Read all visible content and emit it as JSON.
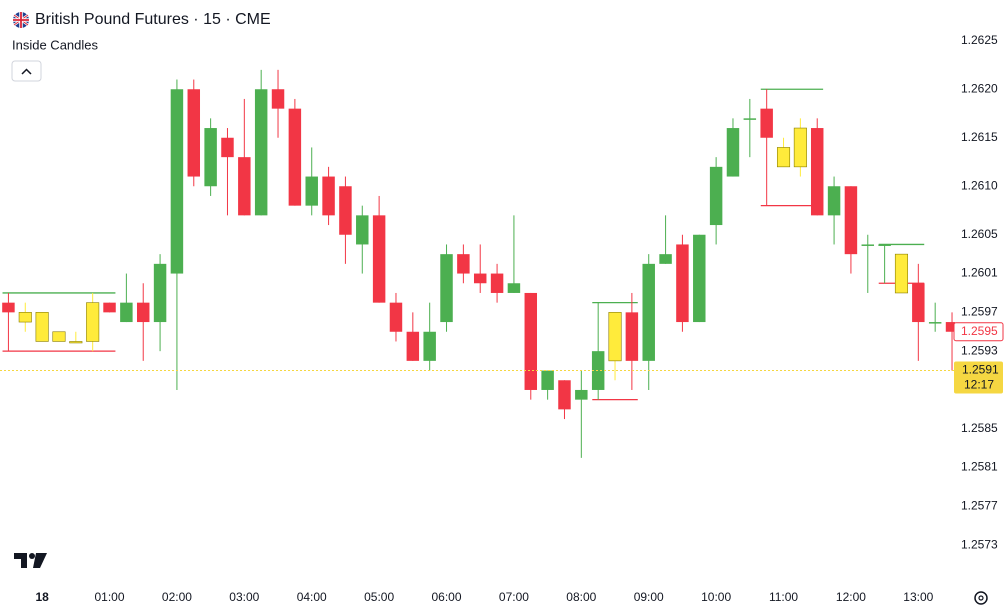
{
  "chart_data": {
    "type": "candlestick",
    "title": "British Pound Futures · 15 · CME",
    "indicator": "Inside Candles",
    "categories": [
      null,
      null,
      "18",
      null,
      null,
      null,
      "01:00",
      null,
      null,
      null,
      "02:00",
      null,
      null,
      null,
      "03:00",
      null,
      null,
      null,
      "04:00",
      null,
      null,
      null,
      "05:00",
      null,
      null,
      null,
      "06:00",
      null,
      null,
      null,
      "07:00",
      null,
      null,
      null,
      "08:00",
      null,
      null,
      null,
      "09:00",
      null,
      null,
      null,
      "10:00",
      null,
      null,
      null,
      "11:00",
      null,
      null,
      null,
      "12:00",
      null,
      null,
      null,
      "13:00",
      null,
      null
    ],
    "open": [
      1.2598,
      1.2596,
      1.2597,
      1.2595,
      1.2594,
      1.2594,
      1.2598,
      1.2596,
      1.2598,
      1.2596,
      1.2601,
      1.262,
      1.261,
      1.2615,
      1.2613,
      1.2607,
      1.262,
      1.2618,
      1.2608,
      1.2611,
      1.261,
      1.2604,
      1.2607,
      1.2598,
      1.2595,
      1.2592,
      1.2596,
      1.2603,
      1.2601,
      1.2601,
      1.2599,
      1.2599,
      1.2589,
      1.259,
      1.2588,
      1.2589,
      1.2592,
      1.2597,
      1.2592,
      1.2602,
      1.2604,
      1.2596,
      1.2606,
      1.2611,
      1.2617,
      1.2618,
      1.2614,
      1.2612,
      1.2616,
      1.2607,
      1.261,
      1.2604,
      1.2604,
      1.2603,
      1.26,
      1.2596,
      1.2596
    ],
    "high": [
      1.2599,
      1.2598,
      1.2597,
      1.2595,
      1.2595,
      1.2599,
      1.2598,
      1.2601,
      1.26,
      1.2603,
      1.2621,
      1.2621,
      1.2617,
      1.2616,
      1.2619,
      1.2622,
      1.2622,
      1.2619,
      1.2614,
      1.2612,
      1.2611,
      1.2608,
      1.2609,
      1.2599,
      1.2597,
      1.2598,
      1.2604,
      1.2604,
      1.2604,
      1.2602,
      1.2607,
      1.2599,
      1.2591,
      1.259,
      1.2591,
      1.2598,
      1.2597,
      1.2599,
      1.2603,
      1.2607,
      1.2605,
      1.2605,
      1.2613,
      1.2617,
      1.2619,
      1.262,
      1.2615,
      1.2617,
      1.2617,
      1.2611,
      1.261,
      1.2605,
      1.2604,
      1.2603,
      1.2602,
      1.2598,
      1.2597
    ],
    "low": [
      1.2593,
      1.2595,
      1.2594,
      1.2594,
      1.2594,
      1.2593,
      1.2597,
      1.2596,
      1.2592,
      1.2593,
      1.2589,
      1.261,
      1.2609,
      1.2607,
      1.2607,
      1.2607,
      1.2615,
      1.2608,
      1.2607,
      1.2606,
      1.2602,
      1.2601,
      1.2598,
      1.2594,
      1.2592,
      1.2591,
      1.2595,
      1.26,
      1.2599,
      1.2598,
      1.2599,
      1.2588,
      1.2588,
      1.2586,
      1.2582,
      1.2588,
      1.259,
      1.2589,
      1.2589,
      1.2602,
      1.2595,
      1.2596,
      1.2604,
      1.2611,
      1.2613,
      1.2608,
      1.2612,
      1.2611,
      1.2607,
      1.2604,
      1.2601,
      1.2599,
      1.26,
      1.2599,
      1.2592,
      1.2595,
      1.2591
    ],
    "close": [
      1.2597,
      1.2597,
      1.2594,
      1.2594,
      1.2594,
      1.2598,
      1.2597,
      1.2598,
      1.2596,
      1.2602,
      1.262,
      1.2611,
      1.2616,
      1.2613,
      1.2607,
      1.262,
      1.2618,
      1.2608,
      1.2611,
      1.2607,
      1.2605,
      1.2607,
      1.2598,
      1.2595,
      1.2592,
      1.2595,
      1.2603,
      1.2601,
      1.26,
      1.2599,
      1.26,
      1.2589,
      1.2591,
      1.2587,
      1.2589,
      1.2593,
      1.2597,
      1.2592,
      1.2602,
      1.2603,
      1.2596,
      1.2605,
      1.2612,
      1.2616,
      1.2617,
      1.2615,
      1.2612,
      1.2616,
      1.2607,
      1.261,
      1.2603,
      1.2604,
      1.2604,
      1.2599,
      1.2596,
      1.2596,
      1.2595
    ],
    "candle_colors": [
      "#f23645",
      "#ffeb3b",
      "#ffeb3b",
      "#ffeb3b",
      "#ffeb3b",
      "#ffeb3b",
      "#f23645",
      "#4caf50",
      "#f23645",
      "#4caf50",
      "#4caf50",
      "#f23645",
      "#4caf50",
      "#f23645",
      "#f23645",
      "#4caf50",
      "#f23645",
      "#f23645",
      "#4caf50",
      "#f23645",
      "#f23645",
      "#4caf50",
      "#f23645",
      "#f23645",
      "#f23645",
      "#4caf50",
      "#4caf50",
      "#f23645",
      "#f23645",
      "#f23645",
      "#4caf50",
      "#f23645",
      "#4caf50",
      "#f23645",
      "#4caf50",
      "#4caf50",
      "#ffeb3b",
      "#f23645",
      "#4caf50",
      "#4caf50",
      "#f23645",
      "#4caf50",
      "#4caf50",
      "#4caf50",
      "#4caf50",
      "#f23645",
      "#ffeb3b",
      "#ffeb3b",
      "#f23645",
      "#4caf50",
      "#f23645",
      "#4caf50",
      "#4caf50",
      "#ffeb3b",
      "#f23645",
      "#4caf50",
      "#f23645"
    ],
    "inside_color": "#ffeb3b",
    "high_line_color": "#4caf50",
    "low_line_color": "#f23645",
    "ylim": [
      1.25691,
      1.26292
    ],
    "yticks": [
      1.2625,
      {
        "value": 1.262,
        "label": "1.2620"
      },
      1.2615,
      {
        "value": 1.261,
        "label": "1.2610"
      },
      1.2605,
      1.2601,
      1.2597,
      1.2593,
      1.2585,
      1.2581,
      1.2577,
      1.2573
    ],
    "close_marker": 1.2595,
    "last_price": 1.2591,
    "countdown": "12:17"
  }
}
